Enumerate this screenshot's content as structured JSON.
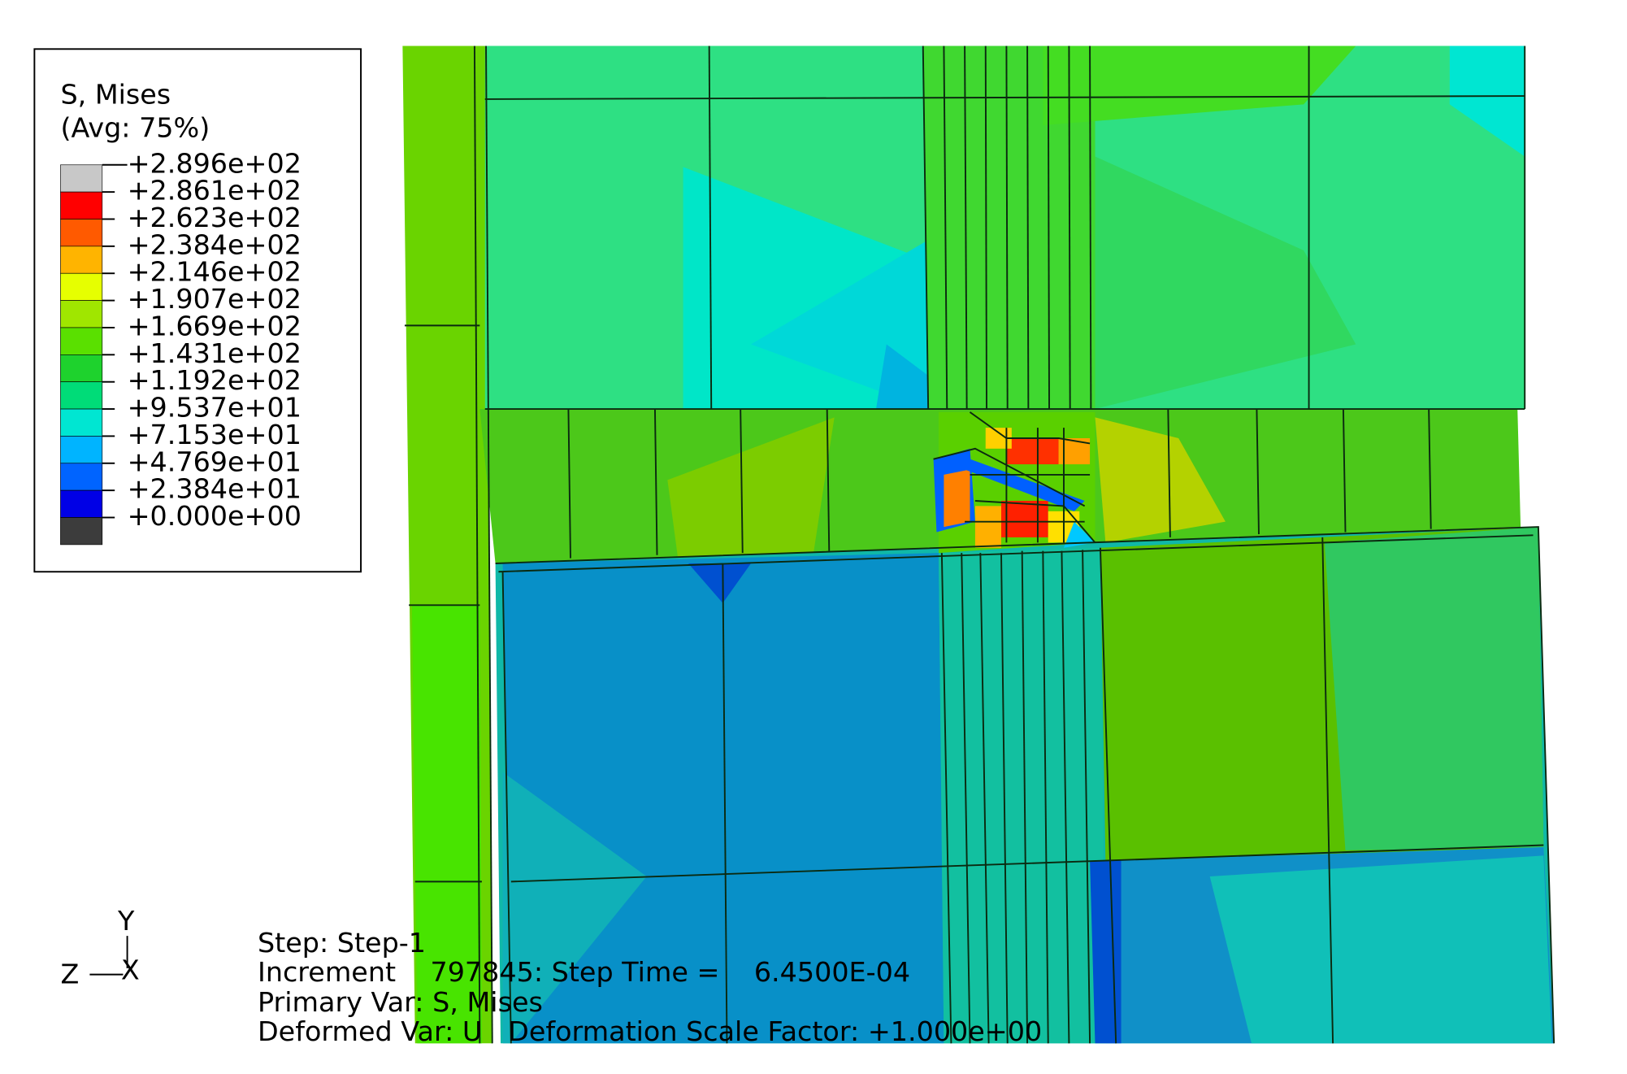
{
  "legend": {
    "title": "S, Mises",
    "subtitle": "(Avg: 75%)",
    "entries": [
      {
        "label": "+2.896e+02",
        "color": "#c8c8c8"
      },
      {
        "label": "+2.861e+02",
        "color": "#ff0000"
      },
      {
        "label": "+2.623e+02",
        "color": "#ff5a00"
      },
      {
        "label": "+2.384e+02",
        "color": "#ffb400"
      },
      {
        "label": "+2.146e+02",
        "color": "#e6ff00"
      },
      {
        "label": "+1.907e+02",
        "color": "#a0e600"
      },
      {
        "label": "+1.669e+02",
        "color": "#5ae000"
      },
      {
        "label": "+1.431e+02",
        "color": "#1ed22d"
      },
      {
        "label": "+1.192e+02",
        "color": "#00dc78"
      },
      {
        "label": "+9.537e+01",
        "color": "#00e6d2"
      },
      {
        "label": "+7.153e+01",
        "color": "#00b4ff"
      },
      {
        "label": "+4.769e+01",
        "color": "#0064ff"
      },
      {
        "label": "+2.384e+01",
        "color": "#0000e6"
      },
      {
        "label": "+0.000e+00",
        "color": "#3c3c3c"
      }
    ]
  },
  "triad": {
    "y": "Y",
    "x": "X",
    "z": "Z"
  },
  "info": {
    "step": "Step: Step-1",
    "increment": "Increment    797845: Step Time =    6.4500E-04",
    "primary_var": "Primary Var: S, Mises",
    "deformed_var": "Deformed Var: U   Deformation Scale Factor: +1.000e+00"
  }
}
